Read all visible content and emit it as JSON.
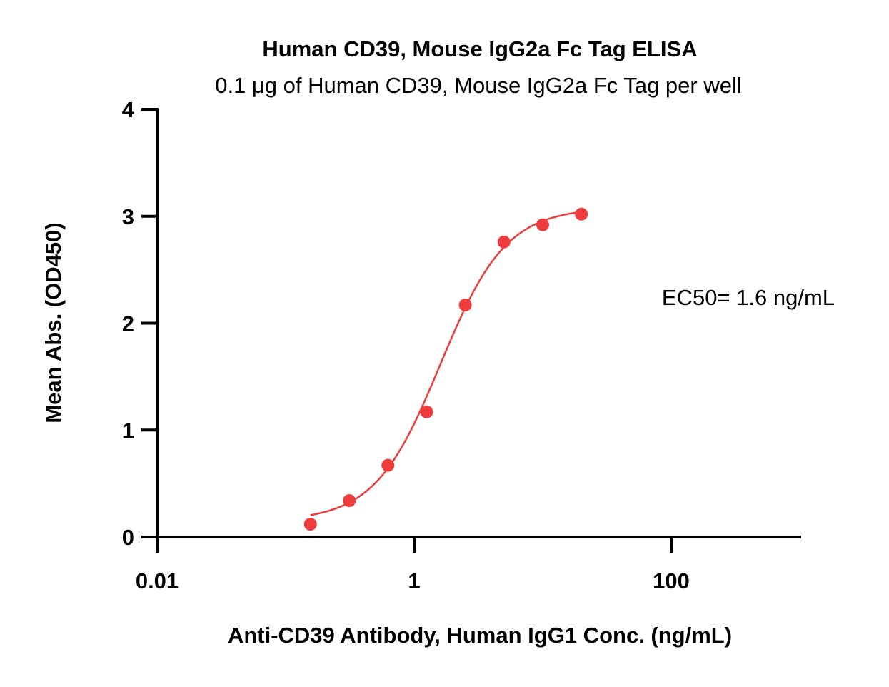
{
  "chart_data": {
    "type": "scatter",
    "title": "Human CD39, Mouse IgG2a Fc Tag ELISA",
    "subtitle": "0.1 μg of Human CD39, Mouse IgG2a Fc Tag per well",
    "xlabel": "Anti-CD39 Antibody, Human IgG1 Conc. (ng/mL)",
    "ylabel": "Mean Abs. (OD450)",
    "x_scale": "log",
    "xlim": [
      0.01,
      1000
    ],
    "ylim": [
      0,
      4
    ],
    "x_ticks": [
      0.01,
      1,
      100
    ],
    "x_tick_labels": [
      "0.01",
      "1",
      "100"
    ],
    "y_ticks": [
      0,
      1,
      2,
      3,
      4
    ],
    "y_tick_labels": [
      "0",
      "1",
      "2",
      "3",
      "4"
    ],
    "grid": false,
    "annotation": "EC50= 1.6 ng/mL",
    "color": "#ee3b3b",
    "series": [
      {
        "x": [
          0.156,
          0.313,
          0.625,
          1.25,
          2.5,
          5,
          10,
          20
        ],
        "y": [
          0.12,
          0.34,
          0.67,
          1.17,
          2.17,
          2.76,
          2.92,
          3.02
        ]
      }
    ],
    "fit_curve": {
      "model": "4PL",
      "bottom": 0.15,
      "top": 3.08,
      "ec50": 1.6,
      "hill": 1.7
    }
  }
}
